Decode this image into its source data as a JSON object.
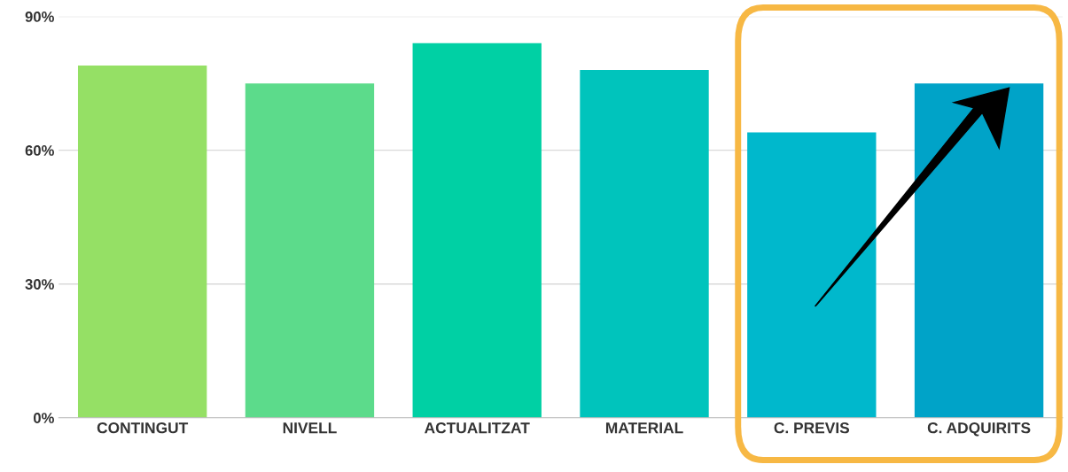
{
  "chart_data": {
    "type": "bar",
    "categories": [
      "CONTINGUT",
      "NIVELL",
      "ACTUALITZAT",
      "MATERIAL",
      "C. PREVIS",
      "C. ADQUIRITS"
    ],
    "values": [
      79,
      75,
      84,
      78,
      64,
      75
    ],
    "colors": [
      "#95e065",
      "#5cdb8b",
      "#00d0a4",
      "#00c4bc",
      "#00b8cc",
      "#00a3c8"
    ],
    "ylim": [
      0,
      90
    ],
    "yticks": [
      {
        "value": 0,
        "label": "0%"
      },
      {
        "value": 30,
        "label": "30%"
      },
      {
        "value": 60,
        "label": "60%"
      },
      {
        "value": 90,
        "label": "90%"
      }
    ],
    "grid": "y"
  }
}
